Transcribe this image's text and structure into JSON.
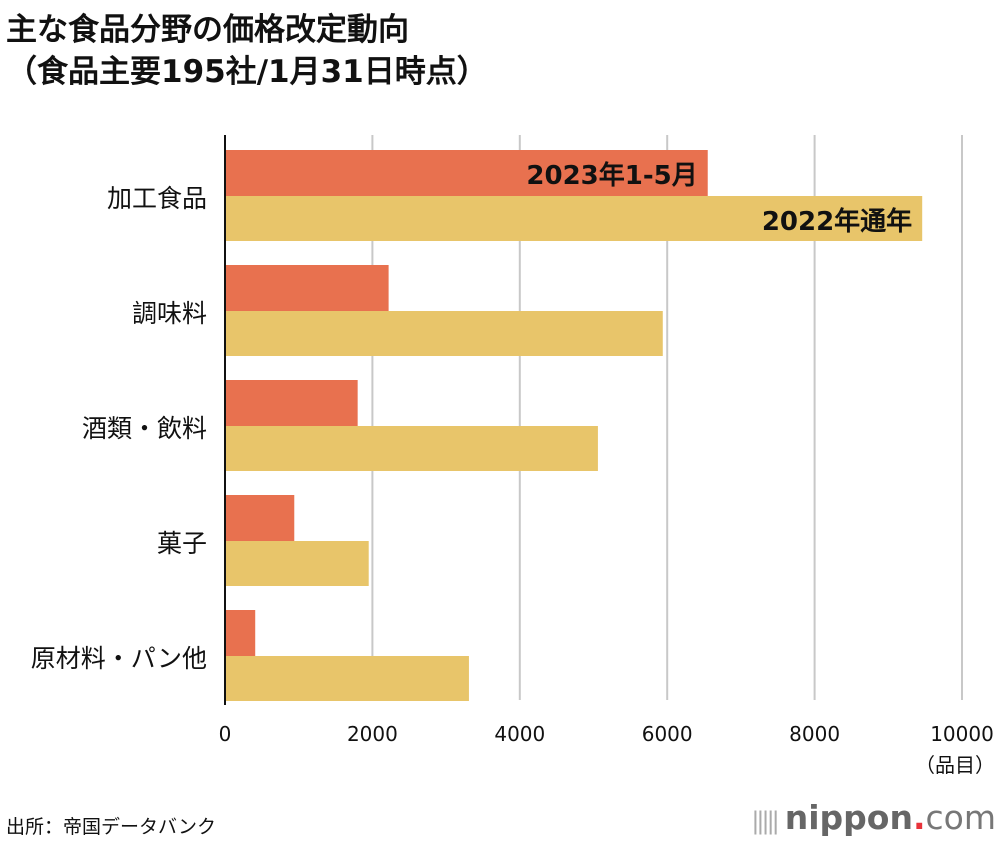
{
  "title_line1": "主な食品分野の価格改定動向",
  "title_line2": "（食品主要195社/1月31日時点）",
  "source": "出所：帝国データバンク",
  "logo": {
    "name": "nippon",
    "dot": ".",
    "suffix": "com"
  },
  "chart_data": {
    "type": "bar",
    "orientation": "horizontal",
    "categories": [
      "加工食品",
      "調味料",
      "酒類・飲料",
      "菓子",
      "原材料・パン他"
    ],
    "series": [
      {
        "name": "2023年1-5月",
        "color": "#E8714F",
        "values": [
          6550,
          2220,
          1800,
          940,
          410
        ]
      },
      {
        "name": "2022年通年",
        "color": "#E8C56A",
        "values": [
          9460,
          5940,
          5060,
          1950,
          3310
        ]
      }
    ],
    "xlim": [
      0,
      10000
    ],
    "xticks": [
      "0",
      "2000",
      "4000",
      "6000",
      "8000",
      "10000"
    ],
    "xlabel": "（品目）",
    "grid": true,
    "legend": "inline-labels"
  }
}
